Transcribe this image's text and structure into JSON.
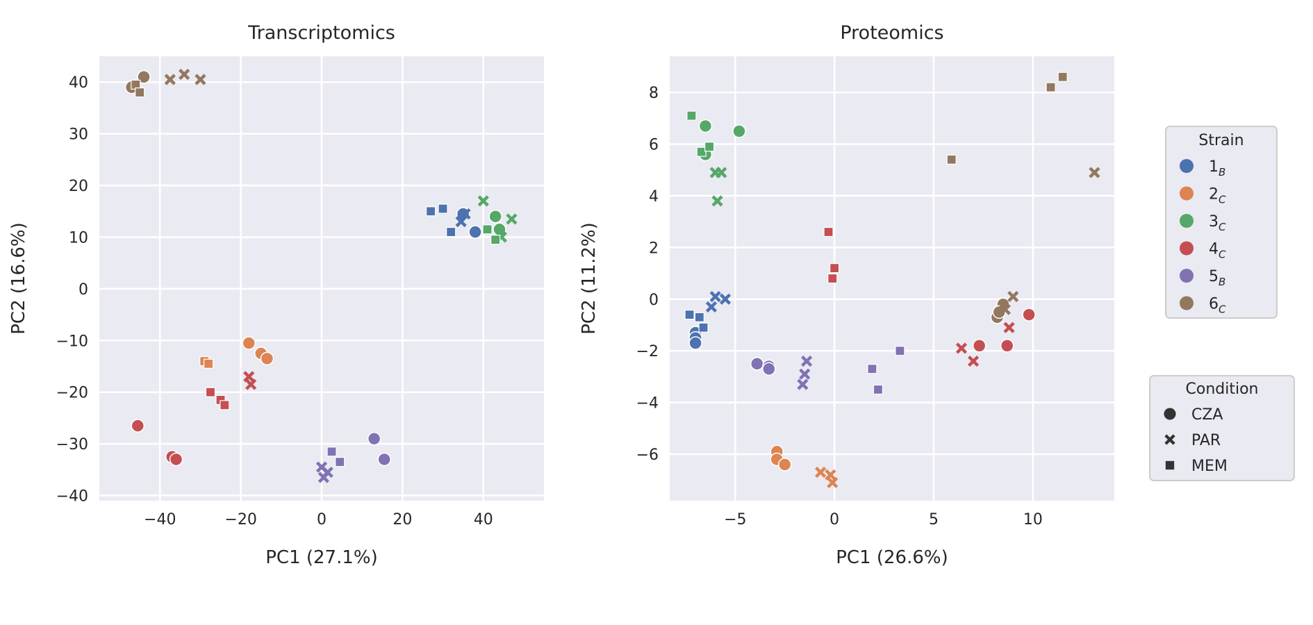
{
  "chart_data": [
    {
      "type": "scatter",
      "title": "Transcriptomics",
      "xlabel": "PC1 (27.1%)",
      "ylabel": "PC2 (16.6%)",
      "xlim": [
        -55,
        55
      ],
      "ylim": [
        -41,
        45
      ],
      "xticks": [
        -40,
        -20,
        0,
        20,
        40
      ],
      "yticks": [
        -40,
        -30,
        -20,
        -10,
        0,
        10,
        20,
        30,
        40
      ],
      "xtick_labels": [
        "−40",
        "−20",
        "0",
        "20",
        "40"
      ],
      "ytick_labels": [
        "−40",
        "−30",
        "−20",
        "−10",
        "0",
        "10",
        "20",
        "30",
        "40"
      ],
      "grid": true,
      "points": [
        {
          "strain": "1",
          "condition": "CZA",
          "x": 35,
          "y": 14.5
        },
        {
          "strain": "1",
          "condition": "CZA",
          "x": 38,
          "y": 11
        },
        {
          "strain": "1",
          "condition": "PAR",
          "x": 35.5,
          "y": 14.5
        },
        {
          "strain": "1",
          "condition": "PAR",
          "x": 34.5,
          "y": 13
        },
        {
          "strain": "1",
          "condition": "MEM",
          "x": 27,
          "y": 15
        },
        {
          "strain": "1",
          "condition": "MEM",
          "x": 30,
          "y": 15.5
        },
        {
          "strain": "1",
          "condition": "MEM",
          "x": 32,
          "y": 11
        },
        {
          "strain": "2",
          "condition": "CZA",
          "x": -18,
          "y": -10.5
        },
        {
          "strain": "2",
          "condition": "CZA",
          "x": -15,
          "y": -12.5
        },
        {
          "strain": "2",
          "condition": "CZA",
          "x": -13.5,
          "y": -13.5
        },
        {
          "strain": "2",
          "condition": "MEM",
          "x": -29,
          "y": -14
        },
        {
          "strain": "2",
          "condition": "MEM",
          "x": -28,
          "y": -14.5
        },
        {
          "strain": "3",
          "condition": "CZA",
          "x": 43,
          "y": 14
        },
        {
          "strain": "3",
          "condition": "CZA",
          "x": 44,
          "y": 11.5
        },
        {
          "strain": "3",
          "condition": "PAR",
          "x": 40,
          "y": 17
        },
        {
          "strain": "3",
          "condition": "PAR",
          "x": 47,
          "y": 13.5
        },
        {
          "strain": "3",
          "condition": "PAR",
          "x": 44.5,
          "y": 10
        },
        {
          "strain": "3",
          "condition": "MEM",
          "x": 41,
          "y": 11.5
        },
        {
          "strain": "3",
          "condition": "MEM",
          "x": 43,
          "y": 9.5
        },
        {
          "strain": "4",
          "condition": "CZA",
          "x": -45.5,
          "y": -26.5
        },
        {
          "strain": "4",
          "condition": "CZA",
          "x": -37,
          "y": -32.5
        },
        {
          "strain": "4",
          "condition": "CZA",
          "x": -36,
          "y": -33
        },
        {
          "strain": "4",
          "condition": "PAR",
          "x": -18,
          "y": -17
        },
        {
          "strain": "4",
          "condition": "PAR",
          "x": -17.5,
          "y": -18.5
        },
        {
          "strain": "4",
          "condition": "MEM",
          "x": -27.5,
          "y": -20
        },
        {
          "strain": "4",
          "condition": "MEM",
          "x": -25,
          "y": -21.5
        },
        {
          "strain": "4",
          "condition": "MEM",
          "x": -24,
          "y": -22.5
        },
        {
          "strain": "5",
          "condition": "CZA",
          "x": 13,
          "y": -29
        },
        {
          "strain": "5",
          "condition": "CZA",
          "x": 15.5,
          "y": -33
        },
        {
          "strain": "5",
          "condition": "PAR",
          "x": 0,
          "y": -34.5
        },
        {
          "strain": "5",
          "condition": "PAR",
          "x": 1.5,
          "y": -35.5
        },
        {
          "strain": "5",
          "condition": "PAR",
          "x": 0.5,
          "y": -36.5
        },
        {
          "strain": "5",
          "condition": "MEM",
          "x": 2.5,
          "y": -31.5
        },
        {
          "strain": "5",
          "condition": "MEM",
          "x": 4.5,
          "y": -33.5
        },
        {
          "strain": "6",
          "condition": "CZA",
          "x": -47,
          "y": 39
        },
        {
          "strain": "6",
          "condition": "CZA",
          "x": -44,
          "y": 41
        },
        {
          "strain": "6",
          "condition": "PAR",
          "x": -37.5,
          "y": 40.5
        },
        {
          "strain": "6",
          "condition": "PAR",
          "x": -34,
          "y": 41.5
        },
        {
          "strain": "6",
          "condition": "PAR",
          "x": -30,
          "y": 40.5
        },
        {
          "strain": "6",
          "condition": "MEM",
          "x": -46,
          "y": 39.5
        },
        {
          "strain": "6",
          "condition": "MEM",
          "x": -45,
          "y": 38
        }
      ]
    },
    {
      "type": "scatter",
      "title": "Proteomics",
      "xlabel": "PC1 (26.6%)",
      "ylabel": "PC2 (11.2%)",
      "xlim": [
        -8.3,
        14.1
      ],
      "ylim": [
        -7.8,
        9.4
      ],
      "xticks": [
        -5,
        0,
        5,
        10
      ],
      "yticks": [
        -6,
        -4,
        -2,
        0,
        2,
        4,
        6,
        8
      ],
      "xtick_labels": [
        "−5",
        "0",
        "5",
        "10"
      ],
      "ytick_labels": [
        "−6",
        "−4",
        "−2",
        "0",
        "2",
        "4",
        "6",
        "8"
      ],
      "grid": true,
      "points": [
        {
          "strain": "1",
          "condition": "CZA",
          "x": -7,
          "y": -1.3
        },
        {
          "strain": "1",
          "condition": "CZA",
          "x": -7,
          "y": -1.5
        },
        {
          "strain": "1",
          "condition": "CZA",
          "x": -7,
          "y": -1.7
        },
        {
          "strain": "1",
          "condition": "PAR",
          "x": -6,
          "y": 0.1
        },
        {
          "strain": "1",
          "condition": "PAR",
          "x": -5.5,
          "y": 0
        },
        {
          "strain": "1",
          "condition": "PAR",
          "x": -6.2,
          "y": -0.3
        },
        {
          "strain": "1",
          "condition": "MEM",
          "x": -7.3,
          "y": -0.6
        },
        {
          "strain": "1",
          "condition": "MEM",
          "x": -6.8,
          "y": -0.7
        },
        {
          "strain": "1",
          "condition": "MEM",
          "x": -6.6,
          "y": -1.1
        },
        {
          "strain": "2",
          "condition": "CZA",
          "x": -2.9,
          "y": -5.9
        },
        {
          "strain": "2",
          "condition": "CZA",
          "x": -2.9,
          "y": -6.2
        },
        {
          "strain": "2",
          "condition": "CZA",
          "x": -2.5,
          "y": -6.4
        },
        {
          "strain": "2",
          "condition": "PAR",
          "x": -0.7,
          "y": -6.7
        },
        {
          "strain": "2",
          "condition": "PAR",
          "x": -0.2,
          "y": -6.8
        },
        {
          "strain": "2",
          "condition": "PAR",
          "x": -0.1,
          "y": -7.1
        },
        {
          "strain": "3",
          "condition": "CZA",
          "x": -6.5,
          "y": 6.7
        },
        {
          "strain": "3",
          "condition": "CZA",
          "x": -4.8,
          "y": 6.5
        },
        {
          "strain": "3",
          "condition": "CZA",
          "x": -6.5,
          "y": 5.6
        },
        {
          "strain": "3",
          "condition": "PAR",
          "x": -6,
          "y": 4.9
        },
        {
          "strain": "3",
          "condition": "PAR",
          "x": -5.7,
          "y": 4.9
        },
        {
          "strain": "3",
          "condition": "PAR",
          "x": -5.9,
          "y": 3.8
        },
        {
          "strain": "3",
          "condition": "MEM",
          "x": -7.2,
          "y": 7.1
        },
        {
          "strain": "3",
          "condition": "MEM",
          "x": -6.7,
          "y": 5.7
        },
        {
          "strain": "3",
          "condition": "MEM",
          "x": -6.3,
          "y": 5.9
        },
        {
          "strain": "4",
          "condition": "CZA",
          "x": 9.8,
          "y": -0.6
        },
        {
          "strain": "4",
          "condition": "CZA",
          "x": 7.3,
          "y": -1.8
        },
        {
          "strain": "4",
          "condition": "CZA",
          "x": 8.7,
          "y": -1.8
        },
        {
          "strain": "4",
          "condition": "PAR",
          "x": 6.4,
          "y": -1.9
        },
        {
          "strain": "4",
          "condition": "PAR",
          "x": 7,
          "y": -2.4
        },
        {
          "strain": "4",
          "condition": "PAR",
          "x": 8.8,
          "y": -1.1
        },
        {
          "strain": "4",
          "condition": "MEM",
          "x": -0.3,
          "y": 2.6
        },
        {
          "strain": "4",
          "condition": "MEM",
          "x": 0,
          "y": 1.2
        },
        {
          "strain": "4",
          "condition": "MEM",
          "x": -0.1,
          "y": 0.8
        },
        {
          "strain": "5",
          "condition": "CZA",
          "x": -3.9,
          "y": -2.5
        },
        {
          "strain": "5",
          "condition": "CZA",
          "x": -3.3,
          "y": -2.6
        },
        {
          "strain": "5",
          "condition": "CZA",
          "x": -3.3,
          "y": -2.7
        },
        {
          "strain": "5",
          "condition": "PAR",
          "x": -1.4,
          "y": -2.4
        },
        {
          "strain": "5",
          "condition": "PAR",
          "x": -1.5,
          "y": -2.9
        },
        {
          "strain": "5",
          "condition": "PAR",
          "x": -1.6,
          "y": -3.3
        },
        {
          "strain": "5",
          "condition": "MEM",
          "x": 1.9,
          "y": -2.7
        },
        {
          "strain": "5",
          "condition": "MEM",
          "x": 3.3,
          "y": -2
        },
        {
          "strain": "5",
          "condition": "MEM",
          "x": 2.2,
          "y": -3.5
        },
        {
          "strain": "6",
          "condition": "CZA",
          "x": 8.2,
          "y": -0.7
        },
        {
          "strain": "6",
          "condition": "CZA",
          "x": 8.5,
          "y": -0.2
        },
        {
          "strain": "6",
          "condition": "CZA",
          "x": 8.3,
          "y": -0.5
        },
        {
          "strain": "6",
          "condition": "PAR",
          "x": 9,
          "y": 0.1
        },
        {
          "strain": "6",
          "condition": "PAR",
          "x": 13.1,
          "y": 4.9
        },
        {
          "strain": "6",
          "condition": "PAR",
          "x": 8.6,
          "y": -0.4
        },
        {
          "strain": "6",
          "condition": "MEM",
          "x": 5.9,
          "y": 5.4
        },
        {
          "strain": "6",
          "condition": "MEM",
          "x": 10.9,
          "y": 8.2
        },
        {
          "strain": "6",
          "condition": "MEM",
          "x": 11.5,
          "y": 8.6
        }
      ]
    }
  ],
  "legend_strain": {
    "title": "Strain",
    "items": [
      {
        "key": "1",
        "label": "1",
        "sub": "B",
        "color": "#4c72b0"
      },
      {
        "key": "2",
        "label": "2",
        "sub": "C",
        "color": "#dd8452"
      },
      {
        "key": "3",
        "label": "3",
        "sub": "C",
        "color": "#55a868"
      },
      {
        "key": "4",
        "label": "4",
        "sub": "C",
        "color": "#c44e52"
      },
      {
        "key": "5",
        "label": "5",
        "sub": "B",
        "color": "#8172b3"
      },
      {
        "key": "6",
        "label": "6",
        "sub": "C",
        "color": "#937860"
      }
    ]
  },
  "legend_condition": {
    "title": "Condition",
    "items": [
      {
        "key": "CZA",
        "label": "CZA",
        "marker": "circle"
      },
      {
        "key": "PAR",
        "label": "PAR",
        "marker": "x"
      },
      {
        "key": "MEM",
        "label": "MEM",
        "marker": "square"
      }
    ],
    "marker_color": "#333333"
  }
}
